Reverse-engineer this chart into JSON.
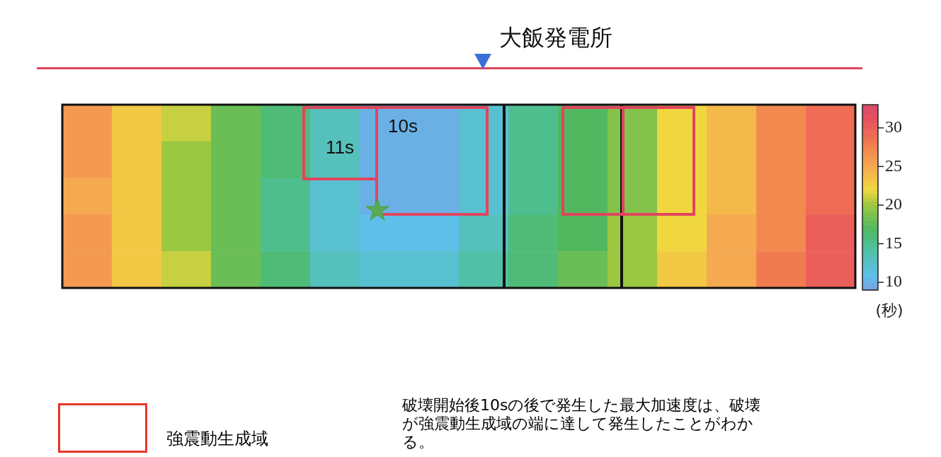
{
  "chart_data": {
    "type": "heatmap",
    "title": "大飯発電所",
    "clabel": "(秒)",
    "categories": [
      null,
      null,
      null,
      null,
      null,
      null,
      null,
      null,
      null,
      null,
      null,
      null,
      null,
      null,
      null,
      null
    ],
    "y_categories": [
      null,
      null,
      null,
      null,
      null
    ],
    "cells": [
      [
        26,
        23,
        21,
        18,
        16,
        13,
        10,
        10,
        12,
        15,
        17,
        19,
        22,
        24,
        27,
        29
      ],
      [
        26,
        23,
        20,
        18,
        16,
        13,
        10,
        10,
        12,
        15,
        17,
        19,
        22,
        24,
        27,
        29
      ],
      [
        25,
        23,
        20,
        18,
        15,
        12,
        10,
        10,
        12,
        15,
        17,
        19,
        22,
        24,
        27,
        29
      ],
      [
        26,
        23,
        20,
        18,
        15,
        12,
        11,
        11,
        13,
        16,
        17,
        20,
        22,
        25,
        27,
        30
      ],
      [
        26,
        23,
        21,
        18,
        16,
        13,
        12,
        12,
        14,
        16,
        18,
        20,
        23,
        25,
        28,
        30
      ]
    ],
    "clim": [
      9,
      33
    ],
    "cticks": [
      10,
      15,
      20,
      25,
      30
    ],
    "tick_labels": false,
    "annotations": [
      "11s",
      "10s",
      "強震動生成域",
      "破壊開始後10sの後で発生した最大加速度は、破壊が強震動生成域の端に達して発生したことがわかる。"
    ]
  }
}
